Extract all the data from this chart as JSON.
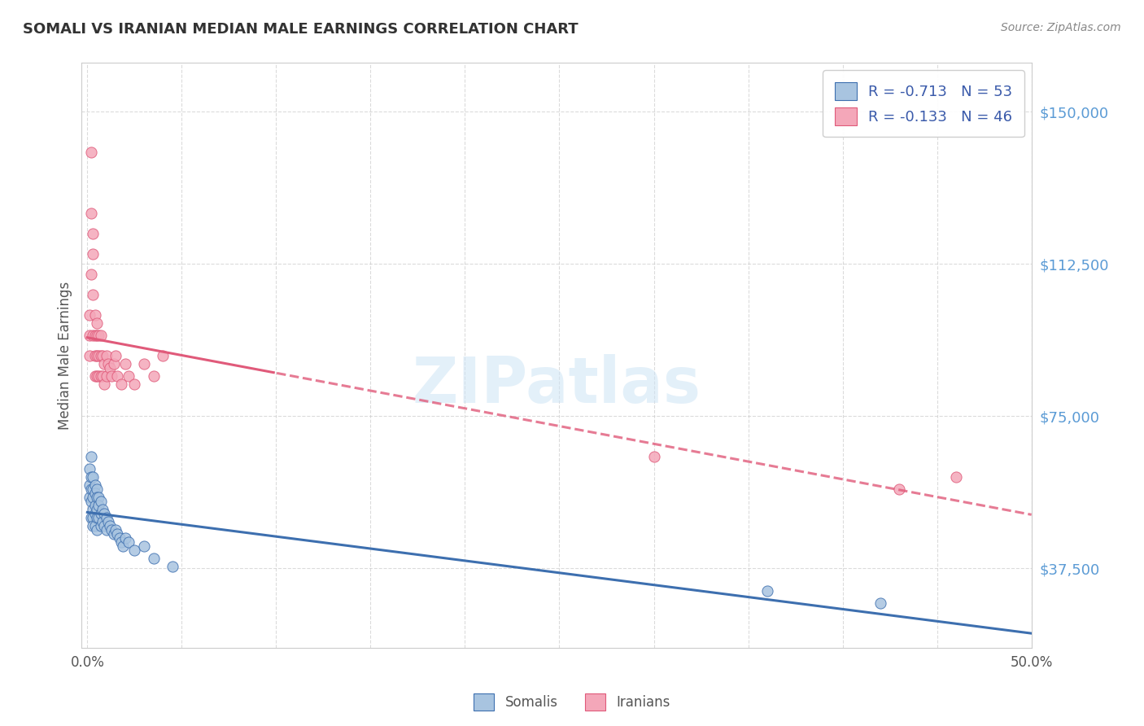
{
  "title": "SOMALI VS IRANIAN MEDIAN MALE EARNINGS CORRELATION CHART",
  "source": "Source: ZipAtlas.com",
  "ylabel": "Median Male Earnings",
  "yticks": [
    37500,
    75000,
    112500,
    150000
  ],
  "ytick_labels": [
    "$37,500",
    "$75,000",
    "$112,500",
    "$150,000"
  ],
  "xmin": 0.0,
  "xmax": 0.5,
  "ymin": 18000,
  "ymax": 162000,
  "somali_color": "#a8c4e0",
  "somali_line_color": "#3d6faf",
  "iranian_color": "#f4a7b9",
  "iranian_line_color": "#e05a7a",
  "somali_R": -0.713,
  "somali_N": 53,
  "iranian_R": -0.133,
  "iranian_N": 46,
  "watermark_text": "ZIPatlas",
  "background_color": "#ffffff",
  "grid_color": "#cccccc",
  "somali_x": [
    0.001,
    0.001,
    0.001,
    0.002,
    0.002,
    0.002,
    0.002,
    0.002,
    0.003,
    0.003,
    0.003,
    0.003,
    0.003,
    0.003,
    0.004,
    0.004,
    0.004,
    0.004,
    0.004,
    0.005,
    0.005,
    0.005,
    0.005,
    0.005,
    0.006,
    0.006,
    0.006,
    0.007,
    0.007,
    0.007,
    0.008,
    0.008,
    0.009,
    0.009,
    0.01,
    0.01,
    0.011,
    0.012,
    0.013,
    0.014,
    0.015,
    0.016,
    0.017,
    0.018,
    0.019,
    0.02,
    0.022,
    0.025,
    0.03,
    0.035,
    0.045,
    0.36,
    0.42
  ],
  "somali_y": [
    62000,
    58000,
    55000,
    65000,
    60000,
    57000,
    54000,
    50000,
    60000,
    57000,
    55000,
    52000,
    50000,
    48000,
    58000,
    56000,
    53000,
    51000,
    48000,
    57000,
    55000,
    52000,
    50000,
    47000,
    55000,
    53000,
    50000,
    54000,
    51000,
    48000,
    52000,
    49000,
    51000,
    48000,
    50000,
    47000,
    49000,
    48000,
    47000,
    46000,
    47000,
    46000,
    45000,
    44000,
    43000,
    45000,
    44000,
    42000,
    43000,
    40000,
    38000,
    32000,
    29000
  ],
  "iranian_x": [
    0.001,
    0.001,
    0.001,
    0.002,
    0.002,
    0.002,
    0.003,
    0.003,
    0.003,
    0.003,
    0.004,
    0.004,
    0.004,
    0.004,
    0.005,
    0.005,
    0.005,
    0.005,
    0.006,
    0.006,
    0.006,
    0.007,
    0.007,
    0.007,
    0.008,
    0.008,
    0.009,
    0.009,
    0.01,
    0.01,
    0.011,
    0.012,
    0.013,
    0.014,
    0.015,
    0.016,
    0.018,
    0.02,
    0.022,
    0.025,
    0.03,
    0.035,
    0.04,
    0.3,
    0.43,
    0.46
  ],
  "iranian_y": [
    100000,
    95000,
    90000,
    140000,
    125000,
    110000,
    120000,
    115000,
    105000,
    95000,
    100000,
    95000,
    90000,
    85000,
    98000,
    95000,
    90000,
    85000,
    95000,
    90000,
    85000,
    95000,
    90000,
    85000,
    90000,
    85000,
    88000,
    83000,
    90000,
    85000,
    88000,
    87000,
    85000,
    88000,
    90000,
    85000,
    83000,
    88000,
    85000,
    83000,
    88000,
    85000,
    90000,
    65000,
    57000,
    60000
  ]
}
